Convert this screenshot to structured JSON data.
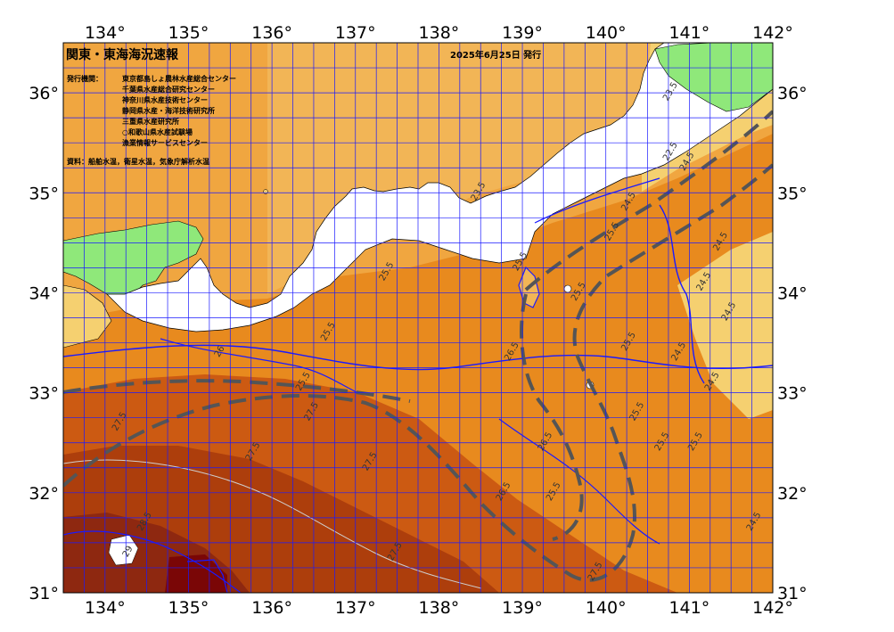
{
  "map": {
    "title": "関東・東海海況速報",
    "issue_date": "2025年6月25日 発行",
    "issuers_label": "発行機関：",
    "issuers": [
      "東京都島しょ農林水産総合センター",
      "千葉県水産総合研究センター",
      "神奈川県水産技術センター",
      "静岡県水産・海洋技術研究所",
      "三重県水産研究所",
      "○和歌山県水産試験場",
      "漁業情報サービスセンター"
    ],
    "source": "資料：船舶水温，衛星水温，気象庁解析水温",
    "lon_labels": [
      "134°",
      "135°",
      "136°",
      "137°",
      "138°",
      "139°",
      "140°",
      "141°",
      "142°"
    ],
    "lat_labels": [
      "36°",
      "35°",
      "34°",
      "33°",
      "32°",
      "31°"
    ],
    "lon_range": [
      133.5,
      142.0
    ],
    "lat_range": [
      31.0,
      36.5
    ],
    "grid_step_deg": 0.25,
    "isotherm_labels": [
      {
        "text": "22.5",
        "lon": 140.8,
        "lat": 35.4
      },
      {
        "text": "23.5",
        "lon": 140.8,
        "lat": 36.0
      },
      {
        "text": "23.5",
        "lon": 138.5,
        "lat": 35.0
      },
      {
        "text": "24.5",
        "lon": 141.0,
        "lat": 35.3
      },
      {
        "text": "24.5",
        "lon": 140.3,
        "lat": 34.9
      },
      {
        "text": "24.5",
        "lon": 141.4,
        "lat": 34.5
      },
      {
        "text": "24.5",
        "lon": 141.2,
        "lat": 34.1
      },
      {
        "text": "24.5",
        "lon": 141.5,
        "lat": 33.8
      },
      {
        "text": "24.5",
        "lon": 140.9,
        "lat": 33.4
      },
      {
        "text": "24.5",
        "lon": 141.3,
        "lat": 33.1
      },
      {
        "text": "24.5",
        "lon": 141.8,
        "lat": 31.7
      },
      {
        "text": "25.5",
        "lon": 140.1,
        "lat": 34.6
      },
      {
        "text": "25.5",
        "lon": 140.3,
        "lat": 33.5
      },
      {
        "text": "25.5",
        "lon": 139.0,
        "lat": 34.3
      },
      {
        "text": "25.5",
        "lon": 137.4,
        "lat": 34.2
      },
      {
        "text": "25.5",
        "lon": 136.7,
        "lat": 33.6
      },
      {
        "text": "25.5",
        "lon": 136.4,
        "lat": 33.1
      },
      {
        "text": "25.5",
        "lon": 139.7,
        "lat": 34.0
      },
      {
        "text": "25.5",
        "lon": 140.7,
        "lat": 32.5
      },
      {
        "text": "25.5",
        "lon": 140.4,
        "lat": 32.8
      },
      {
        "text": "25.5",
        "lon": 141.1,
        "lat": 32.5
      },
      {
        "text": "25.5",
        "lon": 139.4,
        "lat": 32.0
      },
      {
        "text": "26",
        "lon": 135.4,
        "lat": 33.4
      },
      {
        "text": "26.5",
        "lon": 138.9,
        "lat": 33.4
      },
      {
        "text": "26.5",
        "lon": 139.3,
        "lat": 32.5
      },
      {
        "text": "26.5",
        "lon": 138.8,
        "lat": 32.0
      },
      {
        "text": "27.5",
        "lon": 134.2,
        "lat": 32.7
      },
      {
        "text": "27.5",
        "lon": 135.8,
        "lat": 32.4
      },
      {
        "text": "27.5",
        "lon": 136.5,
        "lat": 32.8
      },
      {
        "text": "27.5",
        "lon": 137.2,
        "lat": 32.3
      },
      {
        "text": "27.5",
        "lon": 137.5,
        "lat": 31.4
      },
      {
        "text": "27.5",
        "lon": 139.9,
        "lat": 31.2
      },
      {
        "text": "28.5",
        "lon": 134.5,
        "lat": 31.7
      },
      {
        "text": "29",
        "lon": 134.3,
        "lat": 31.4
      }
    ]
  }
}
